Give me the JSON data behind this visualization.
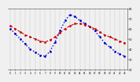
{
  "hours": [
    0,
    1,
    2,
    3,
    4,
    5,
    6,
    7,
    8,
    9,
    10,
    11,
    12,
    13,
    14,
    15,
    16,
    17,
    18,
    19,
    20,
    21,
    22,
    23
  ],
  "temp_red": [
    63,
    60,
    57,
    54,
    52,
    50,
    48,
    47,
    49,
    52,
    56,
    60,
    63,
    65,
    65,
    64,
    62,
    60,
    57,
    54,
    52,
    50,
    48,
    46
  ],
  "thsw_blue": [
    60,
    55,
    50,
    45,
    40,
    37,
    34,
    33,
    38,
    47,
    58,
    68,
    74,
    72,
    68,
    65,
    62,
    58,
    52,
    46,
    42,
    38,
    35,
    33
  ],
  "red_color": "#cc0000",
  "blue_color": "#0000cc",
  "bg_color": "#f0f0f0",
  "grid_color": "#888888",
  "ylim_min": 20,
  "ylim_max": 80,
  "yticks": [
    20,
    30,
    40,
    50,
    60,
    70,
    80
  ],
  "ytick_labels": [
    "20",
    "30",
    "40",
    "50",
    "60",
    "70",
    "80"
  ]
}
